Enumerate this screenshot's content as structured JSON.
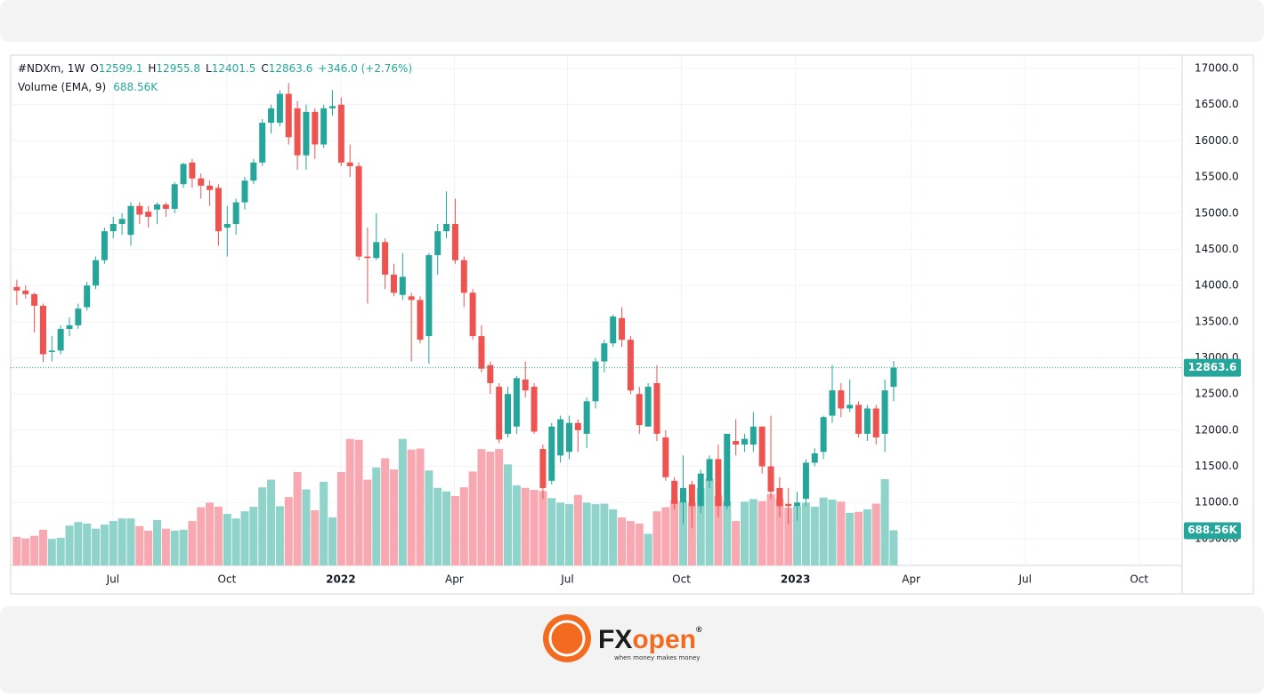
{
  "chart_data": {
    "type": "candlestick",
    "symbol": "#NDXm, 1W",
    "ohlc_legend": [
      {
        "key": "O",
        "text": "12599.1"
      },
      {
        "key": "H",
        "text": "12955.8"
      },
      {
        "key": "L",
        "text": "12401.5"
      },
      {
        "key": "C",
        "text": "12863.6"
      }
    ],
    "change": "+346.0 (+2.76%)",
    "volume_title": "Volume (EMA, 9)",
    "volume_legend": "688.56K",
    "last_price_label": "12863.6",
    "up_color": "#26a69a",
    "down_color": "#ef5350",
    "categories": [
      null,
      null,
      null,
      null,
      null,
      null,
      null,
      null,
      null,
      null,
      null,
      null,
      null,
      null,
      null,
      null,
      null,
      null,
      null,
      null,
      null,
      null,
      null,
      null,
      null,
      null,
      null,
      null,
      null,
      null,
      null,
      null,
      null,
      null,
      null,
      null,
      null,
      null,
      null,
      null,
      null,
      null,
      null,
      null,
      null,
      null,
      null,
      null,
      null,
      null,
      null,
      null,
      null,
      null,
      null,
      null,
      null,
      null,
      null,
      null,
      null,
      null,
      null,
      null,
      null,
      null,
      null,
      null,
      null,
      null,
      null,
      null,
      null,
      null,
      null,
      null,
      null,
      null,
      null,
      null,
      null,
      null,
      null,
      null,
      null,
      null,
      null,
      null,
      null,
      null,
      null,
      null,
      null,
      null,
      null,
      null,
      null,
      null,
      null,
      null,
      null
    ],
    "open": [
      13980,
      13930,
      13880,
      13720,
      13080,
      13100,
      13400,
      13450,
      13700,
      14000,
      14350,
      14750,
      14850,
      14700,
      15100,
      15020,
      15050,
      15120,
      15060,
      15400,
      15700,
      15480,
      15380,
      15350,
      14800,
      14850,
      15150,
      15450,
      15700,
      16250,
      16250,
      16650,
      16450,
      15800,
      16400,
      15950,
      16450,
      16500,
      15700,
      15650,
      14400,
      14380,
      14600,
      14150,
      13870,
      13850,
      13800,
      13300,
      14420,
      14750,
      14850,
      14350,
      13900,
      13300,
      12900,
      12600,
      11950,
      12050,
      12700,
      12600,
      11740,
      11300,
      11650,
      11700,
      12100,
      11950,
      12400,
      12950,
      13200,
      13550,
      13250,
      12500,
      12050,
      12650,
      11900,
      11300,
      11000,
      11250,
      10950,
      11300,
      11600,
      10950,
      11850,
      11800,
      11800,
      12050,
      11500,
      11200,
      10980,
      10950,
      11050,
      11550,
      11700,
      12200,
      12550,
      12300,
      12350,
      11950,
      12300,
      11950,
      12599.1
    ],
    "high": [
      14080,
      14000,
      13900,
      13750,
      13300,
      13450,
      13560,
      13750,
      14050,
      14400,
      14800,
      14950,
      15000,
      15150,
      15150,
      15100,
      15150,
      15150,
      15430,
      15700,
      15750,
      15550,
      15450,
      15400,
      15100,
      15200,
      15500,
      15750,
      16300,
      16500,
      16700,
      16800,
      16550,
      16500,
      16450,
      16500,
      16700,
      16600,
      15950,
      15700,
      14800,
      15000,
      14650,
      14300,
      14450,
      13900,
      13850,
      14450,
      14850,
      15300,
      15200,
      14400,
      13950,
      13450,
      12950,
      12650,
      12600,
      12750,
      12950,
      12650,
      11800,
      12100,
      12200,
      12200,
      12150,
      12450,
      13000,
      13250,
      13600,
      13700,
      13300,
      12600,
      12650,
      12900,
      12000,
      11350,
      11650,
      11300,
      11450,
      11650,
      11800,
      11950,
      12150,
      11950,
      12250,
      12050,
      12200,
      11350,
      11200,
      11150,
      11600,
      11750,
      12200,
      12900,
      12650,
      12700,
      12400,
      12350,
      12350,
      12700,
      12955.8
    ],
    "low": [
      13730,
      13820,
      13350,
      12940,
      12950,
      13050,
      13300,
      13400,
      13650,
      13950,
      14300,
      14650,
      14700,
      14550,
      14850,
      14800,
      14850,
      14950,
      15000,
      15350,
      15350,
      15200,
      15100,
      14550,
      14400,
      14700,
      15050,
      15400,
      15650,
      16100,
      16200,
      15950,
      15600,
      15600,
      15750,
      15900,
      16350,
      15650,
      15500,
      14350,
      13750,
      14350,
      13950,
      13850,
      13800,
      12950,
      13200,
      12920,
      14150,
      14650,
      14300,
      13700,
      13250,
      12800,
      12500,
      11820,
      11900,
      11950,
      12450,
      11950,
      11050,
      11250,
      11550,
      11600,
      11700,
      11750,
      12300,
      12800,
      13150,
      13150,
      12500,
      11950,
      12050,
      11850,
      11300,
      10900,
      10700,
      10650,
      10850,
      11200,
      10800,
      10900,
      11650,
      11700,
      11700,
      11400,
      11050,
      10800,
      10700,
      10750,
      10950,
      11500,
      11600,
      12100,
      12180,
      12250,
      11900,
      11850,
      11800,
      11700,
      12401.5
    ],
    "close": [
      13930,
      13880,
      13720,
      13050,
      13100,
      13400,
      13450,
      13680,
      14000,
      14350,
      14750,
      14850,
      14920,
      15100,
      14980,
      14950,
      15120,
      15060,
      15400,
      15680,
      15480,
      15380,
      15320,
      14750,
      14850,
      15150,
      15450,
      15700,
      16250,
      16450,
      16650,
      16050,
      15800,
      16400,
      15950,
      16450,
      16480,
      15700,
      15650,
      14400,
      14380,
      14600,
      14150,
      13900,
      14120,
      13800,
      13250,
      14420,
      14750,
      14850,
      14350,
      13900,
      13300,
      12850,
      12650,
      11870,
      12500,
      12720,
      12550,
      11980,
      11200,
      12050,
      12150,
      12100,
      12000,
      12400,
      12950,
      13200,
      13570,
      13250,
      12550,
      12070,
      12600,
      11950,
      11350,
      10980,
      11200,
      10950,
      11400,
      11600,
      10950,
      11950,
      11800,
      11880,
      12050,
      11500,
      11150,
      10950,
      10950,
      11000,
      11550,
      11680,
      12180,
      12550,
      12300,
      12350,
      11950,
      12300,
      11900,
      12550,
      12863.6
    ],
    "volume": {
      "values": [
        560,
        530,
        580,
        700,
        520,
        540,
        780,
        850,
        820,
        720,
        800,
        870,
        920,
        920,
        770,
        680,
        890,
        720,
        680,
        700,
        870,
        1140,
        1230,
        1150,
        1010,
        920,
        1060,
        1150,
        1530,
        1680,
        1160,
        1340,
        1830,
        1490,
        1080,
        1640,
        940,
        1830,
        2480,
        2460,
        1680,
        1920,
        2100,
        1880,
        2480,
        2270,
        2290,
        1860,
        1520,
        1450,
        1360,
        1530,
        1840,
        2280,
        2230,
        2280,
        1980,
        1570,
        1520,
        1480,
        1460,
        1320,
        1230,
        1200,
        1380,
        1230,
        1200,
        1210,
        1100,
        940,
        870,
        820,
        620,
        1060,
        1140,
        1280,
        1250,
        1230,
        1520,
        1700,
        1370,
        1260,
        870,
        1250,
        1300,
        1260,
        1400,
        1310,
        1130,
        1160,
        1230,
        1150,
        1330,
        1290,
        1250,
        1030,
        1050,
        1100,
        1210,
        1690,
        688.56
      ],
      "ylim": [
        0,
        10000
      ],
      "up_color": "#8fd3ca",
      "down_color": "#f7a8b1"
    },
    "xlim": [
      -0.7,
      132.9
    ],
    "xticks": [
      {
        "value": 10.96,
        "label": "Jul"
      },
      {
        "value": 23.96,
        "label": "Oct"
      },
      {
        "value": 36.95,
        "label": "2022"
      },
      {
        "value": 49.9,
        "label": "Apr"
      },
      {
        "value": 62.8,
        "label": "Jul"
      },
      {
        "value": 75.8,
        "label": "Oct"
      },
      {
        "value": 88.8,
        "label": "2023"
      },
      {
        "value": 102,
        "label": "Apr"
      },
      {
        "value": 115,
        "label": "Jul"
      },
      {
        "value": 128,
        "label": "Oct"
      }
    ],
    "ylim": [
      10130,
      17185
    ],
    "yticks": [
      {
        "value": 10500,
        "label": "10500.0"
      },
      {
        "value": 11000,
        "label": "11000.0"
      },
      {
        "value": 11500,
        "label": "11500.0"
      },
      {
        "value": 12000,
        "label": "12000.0"
      },
      {
        "value": 12500,
        "label": "12500.0"
      },
      {
        "value": 13000,
        "label": "13000.0"
      },
      {
        "value": 13500,
        "label": "13500.0"
      },
      {
        "value": 14000,
        "label": "14000.0"
      },
      {
        "value": 14500,
        "label": "14500.0"
      },
      {
        "value": 15000,
        "label": "15000.0"
      },
      {
        "value": 15500,
        "label": "15500.0"
      },
      {
        "value": 16000,
        "label": "16000.0"
      },
      {
        "value": 16500,
        "label": "16500.0"
      },
      {
        "value": 17000,
        "label": "17000.0"
      }
    ],
    "grid": true
  },
  "footer": {
    "brand_left": "FX",
    "brand_right": "open",
    "mark": "®",
    "tagline": "when money makes money"
  }
}
